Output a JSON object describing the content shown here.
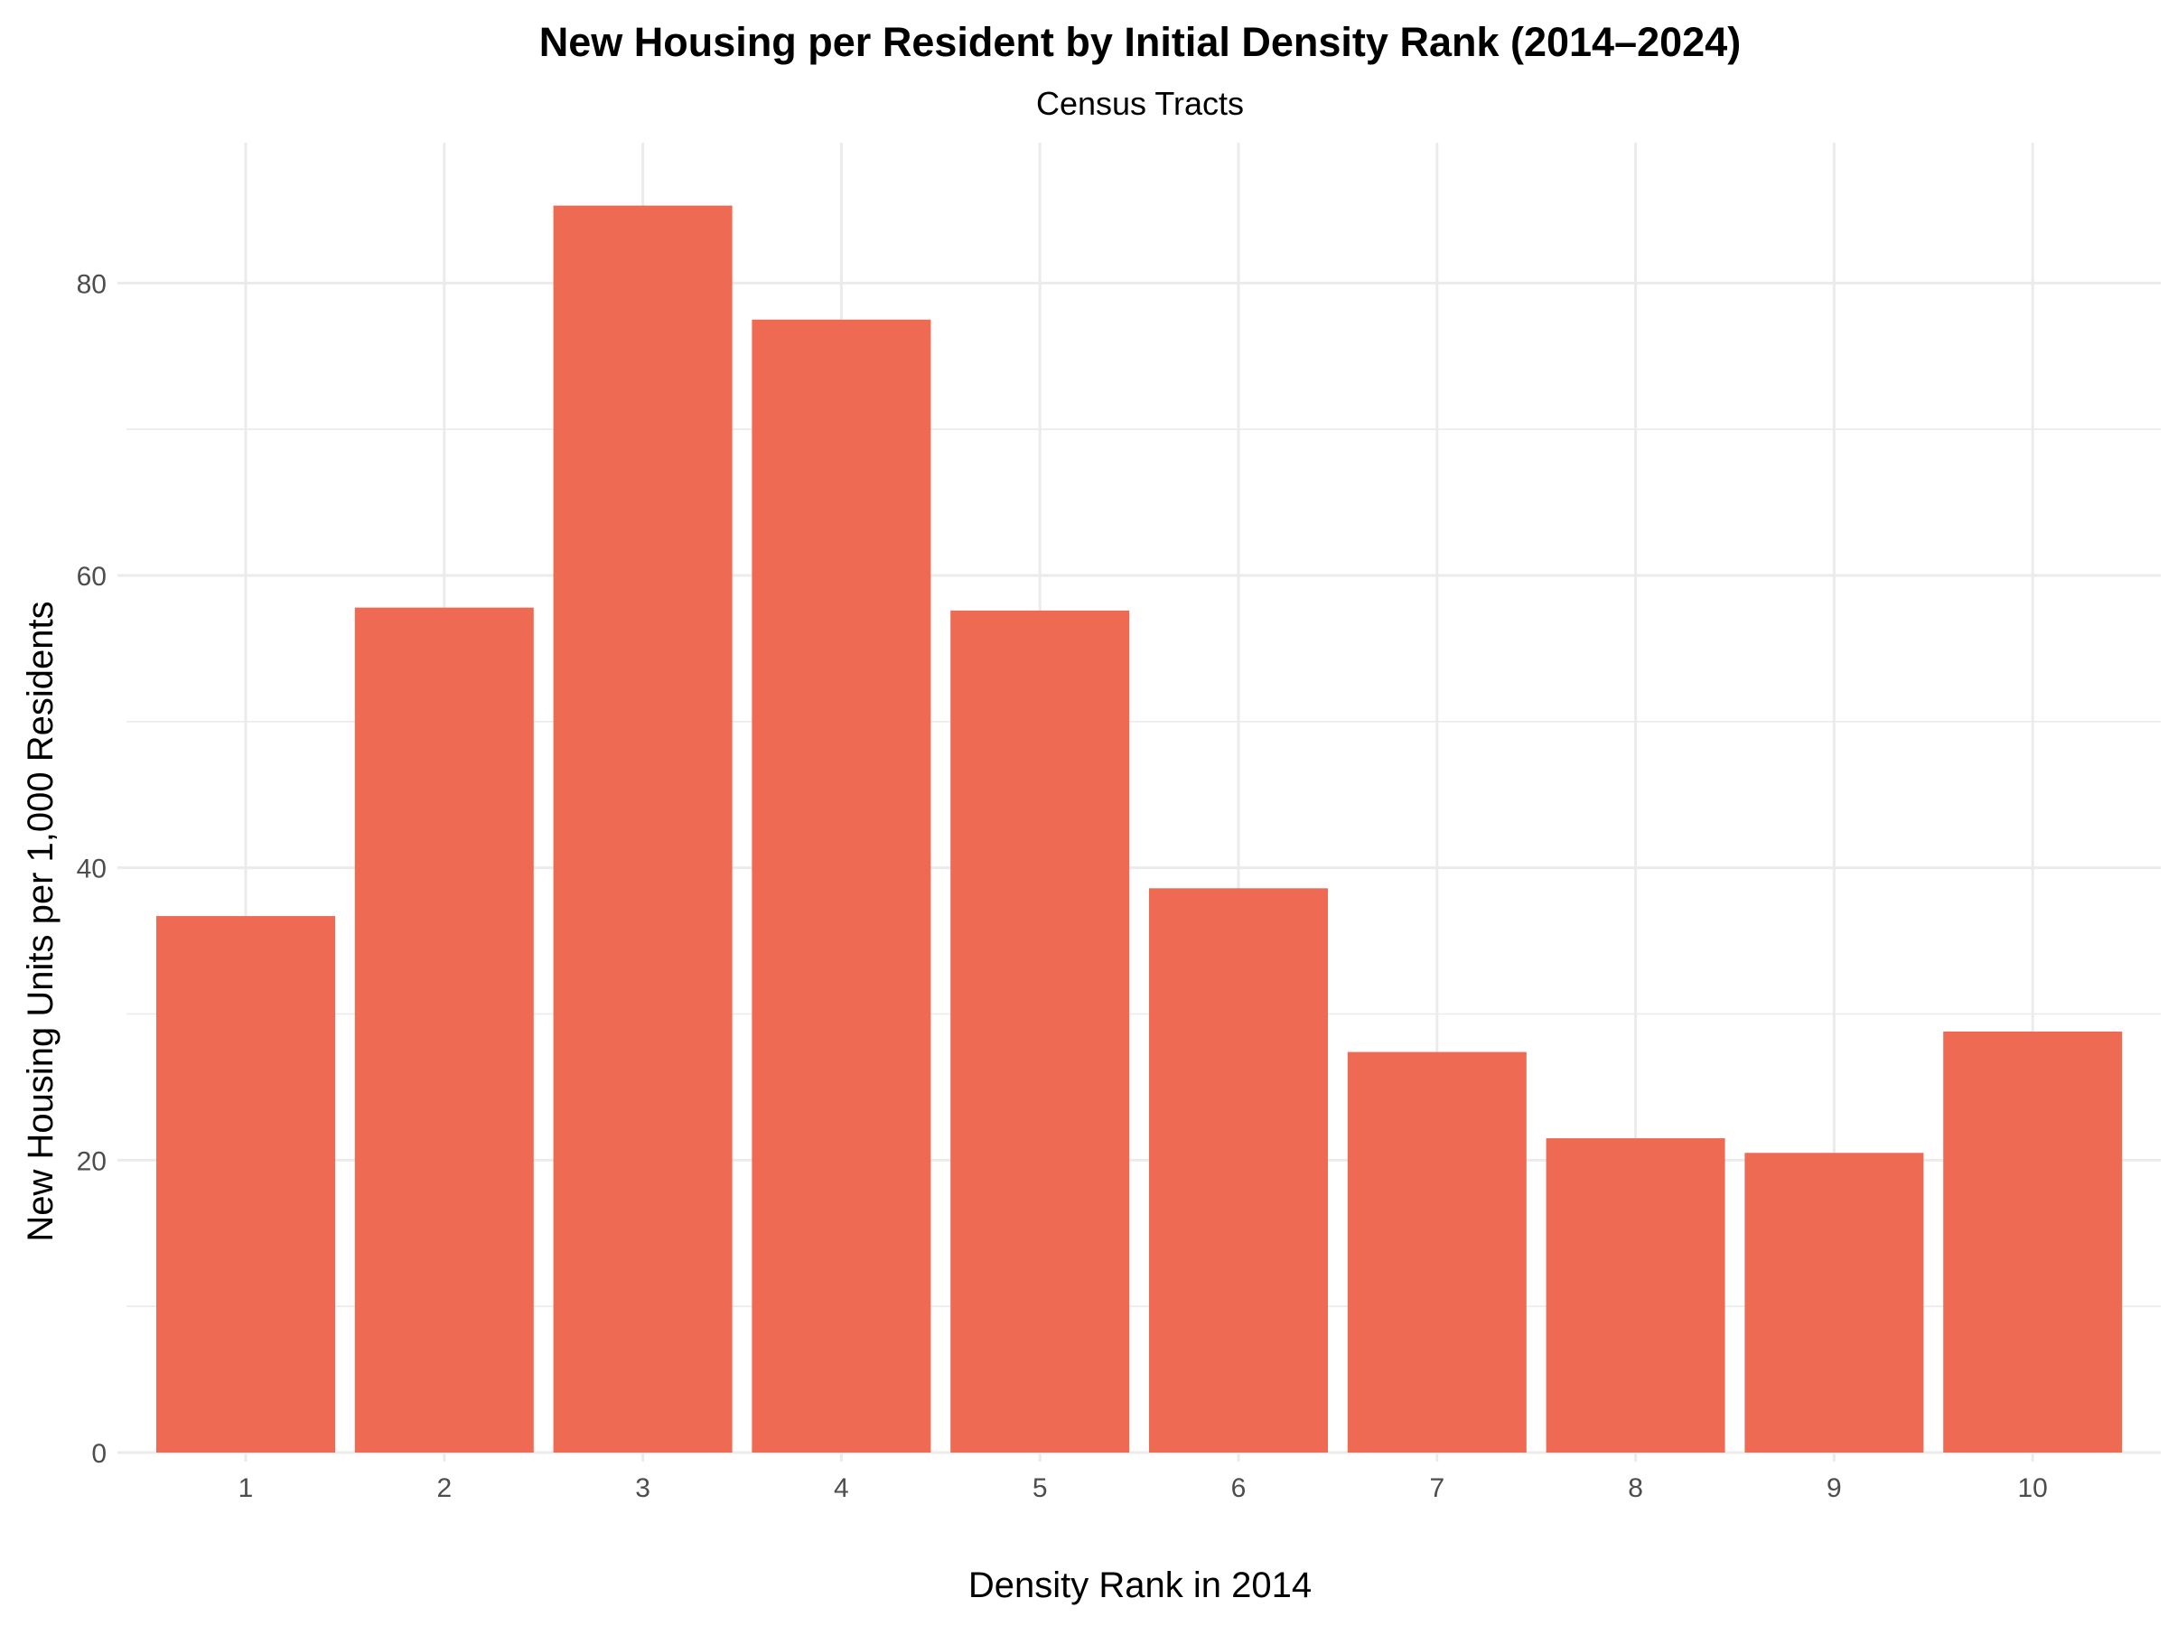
{
  "chart_data": {
    "type": "bar",
    "title": "New Housing per Resident by Initial Density Rank (2014–2024)",
    "subtitle": "Census Tracts",
    "xlabel": "Density Rank in 2014",
    "ylabel": "New Housing Units per 1,000 Residents",
    "categories": [
      "1",
      "2",
      "3",
      "4",
      "5",
      "6",
      "7",
      "8",
      "9",
      "10"
    ],
    "values": [
      36.7,
      57.8,
      85.3,
      77.5,
      57.6,
      38.6,
      27.4,
      21.5,
      20.5,
      28.8
    ],
    "ylim": [
      0,
      89.6
    ],
    "yticks": [
      "0",
      "20",
      "40",
      "60",
      "80"
    ],
    "grid": true,
    "colors": {
      "bar": "#ee6a52",
      "grid": "#ebebeb",
      "tick_text": "#4d4d4d",
      "text": "#000000",
      "background": "#ffffff"
    }
  }
}
